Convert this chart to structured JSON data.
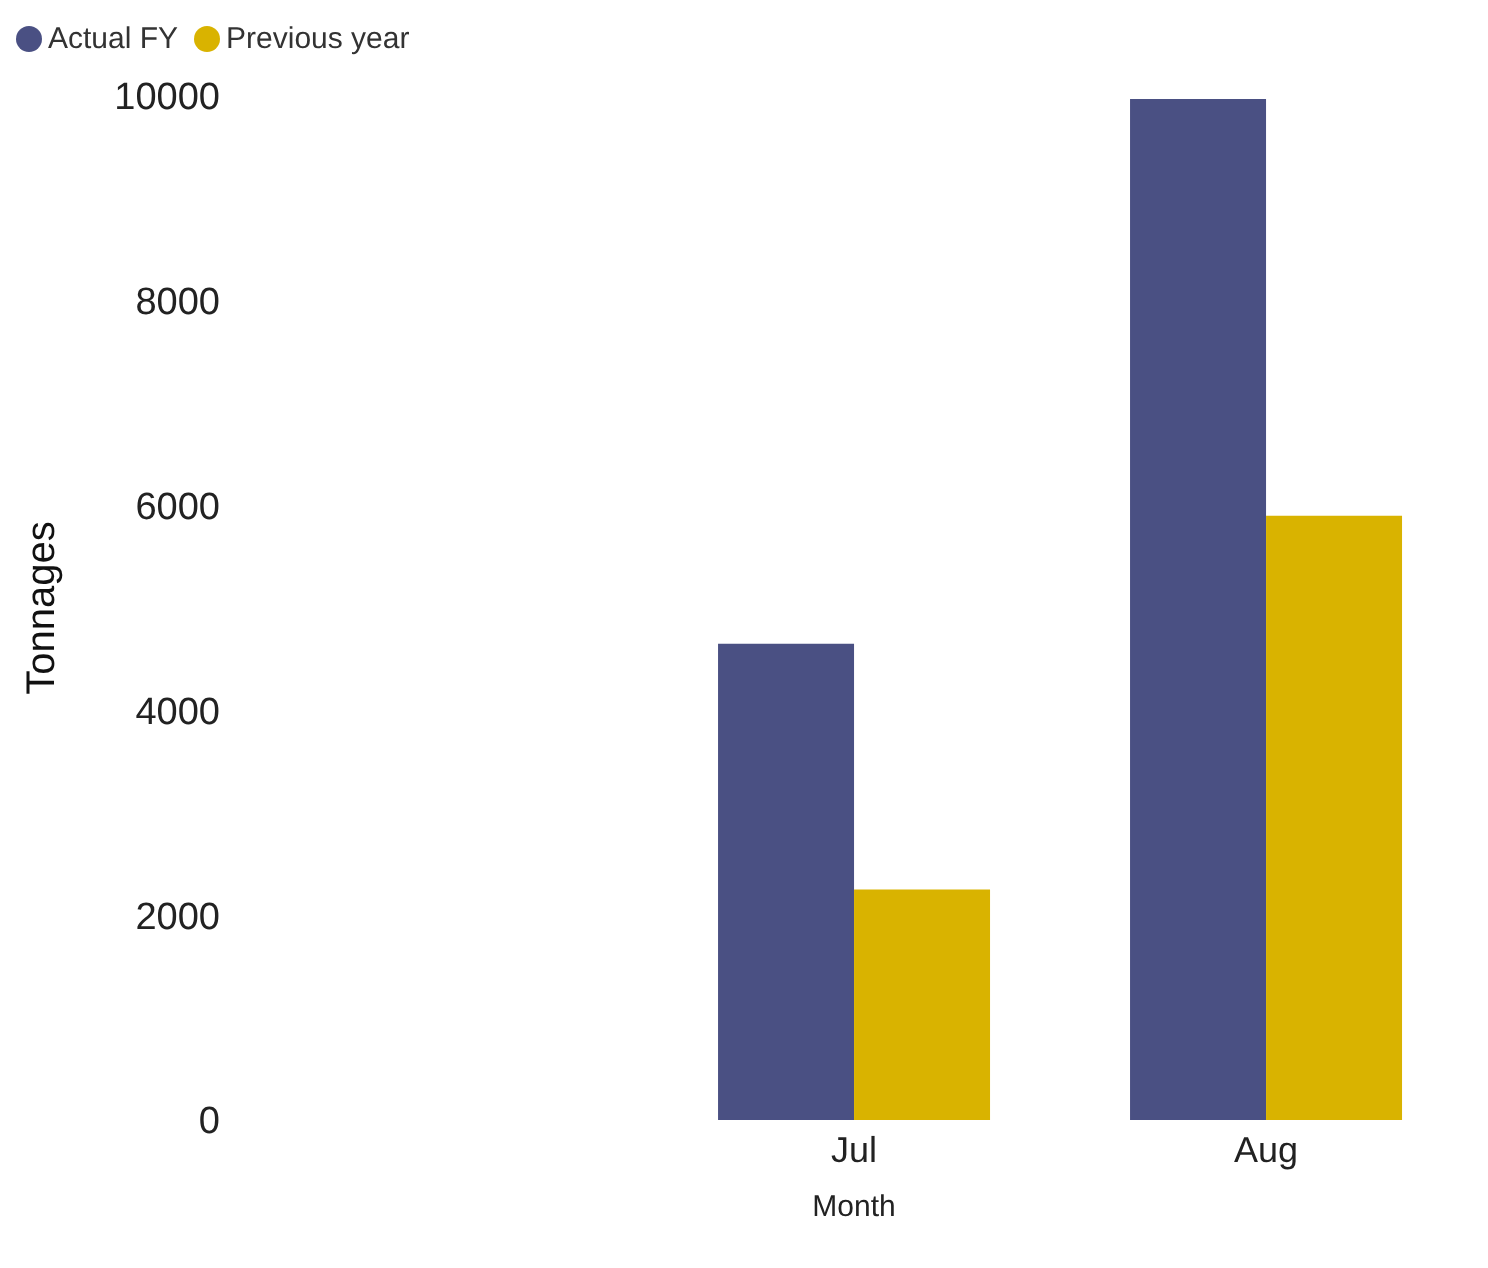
{
  "chart_data": {
    "type": "bar",
    "xlabel": "Month",
    "ylabel": "Tonnages",
    "categories": [
      null,
      "Jul",
      "Aug"
    ],
    "series": [
      {
        "name": "Actual FY",
        "color": "#4a5083",
        "values": [
          null,
          4650,
          9970
        ]
      },
      {
        "name": "Previous year",
        "color": "#d9b300",
        "values": [
          null,
          2250,
          5900
        ]
      }
    ],
    "ylim": [
      0,
      10000
    ],
    "yticks": [
      0,
      2000,
      4000,
      6000,
      8000,
      10000
    ],
    "grid": false,
    "legend": "top left"
  }
}
